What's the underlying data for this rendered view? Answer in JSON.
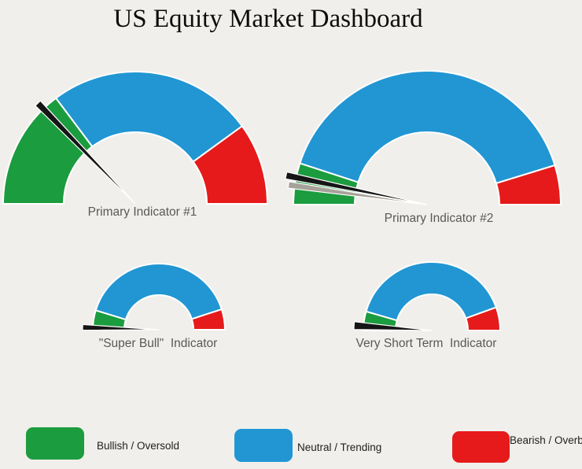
{
  "title": "US Equity Market Dashboard",
  "palette": {
    "bullish_green": "#1b9c3e",
    "neutral_blue": "#2196d3",
    "bearish_red": "#e61a1a",
    "needle_black": "#151515",
    "needle_gray": "#a7a299",
    "background": "#f1efeb"
  },
  "chart_data": [
    {
      "type": "gauge",
      "title": "Primary Indicator #1",
      "range_degrees": 180,
      "scale": "0-100 percent, left (bullish) to right (bearish)",
      "segments": [
        {
          "key": "bullish",
          "name": "Bullish / Oversold",
          "percent": 29.5,
          "color": "#1b9c3e"
        },
        {
          "key": "neutral",
          "name": "Neutral / Trending",
          "percent": 50.5,
          "color": "#2196d3"
        },
        {
          "key": "bearish",
          "name": "Bearish / Overbought",
          "percent": 20,
          "color": "#e61a1a"
        }
      ],
      "needles": [
        {
          "name": "current-reading",
          "color": "#151515",
          "value_percent": 25.5
        }
      ]
    },
    {
      "type": "gauge",
      "title": "Primary Indicator #2",
      "range_degrees": 180,
      "scale": "0-100 percent, left (bullish) to right (bearish)",
      "segments": [
        {
          "key": "bullish",
          "name": "Bullish / Oversold",
          "percent": 10,
          "color": "#1b9c3e"
        },
        {
          "key": "neutral",
          "name": "Neutral / Trending",
          "percent": 80.5,
          "color": "#2196d3"
        },
        {
          "key": "bearish",
          "name": "Bearish / Overbought",
          "percent": 9.5,
          "color": "#e61a1a"
        }
      ],
      "needles": [
        {
          "name": "secondary-reading",
          "color": "#a7a299",
          "value_percent": 4.5
        },
        {
          "name": "current-reading",
          "color": "#151515",
          "value_percent": 6.5
        }
      ]
    },
    {
      "type": "gauge",
      "title": "\"Super Bull\"  Indicator",
      "range_degrees": 180,
      "scale": "0-100 percent, left (bullish) to right (bearish)",
      "segments": [
        {
          "key": "bullish",
          "name": "Bullish / Oversold",
          "percent": 9.5,
          "color": "#1b9c3e"
        },
        {
          "key": "neutral",
          "name": "Neutral / Trending",
          "percent": 80.5,
          "color": "#2196d3"
        },
        {
          "key": "bearish",
          "name": "Bearish / Overbought",
          "percent": 10,
          "color": "#e61a1a"
        }
      ],
      "needles": [
        {
          "name": "current-reading",
          "color": "#151515",
          "value_percent": 1
        }
      ]
    },
    {
      "type": "gauge",
      "title": "Very Short Term  Indicator",
      "range_degrees": 180,
      "scale": "0-100 percent, left (bullish) to right (bearish)",
      "segments": [
        {
          "key": "bullish",
          "name": "Bullish / Oversold",
          "percent": 9,
          "color": "#1b9c3e"
        },
        {
          "key": "neutral",
          "name": "Neutral / Trending",
          "percent": 80,
          "color": "#2196d3"
        },
        {
          "key": "bearish",
          "name": "Bearish / Overbought",
          "percent": 11,
          "color": "#e61a1a"
        }
      ],
      "needles": [
        {
          "name": "current-reading",
          "color": "#151515",
          "value_percent": 2
        }
      ]
    }
  ],
  "legend": {
    "items": [
      {
        "key": "bullish",
        "label": "Bullish / Oversold",
        "color": "#1b9c3e"
      },
      {
        "key": "neutral",
        "label": "Neutral / Trending",
        "color": "#2196d3"
      },
      {
        "key": "bearish",
        "label": "Bearish / Overbought",
        "color": "#e61a1a"
      }
    ]
  }
}
